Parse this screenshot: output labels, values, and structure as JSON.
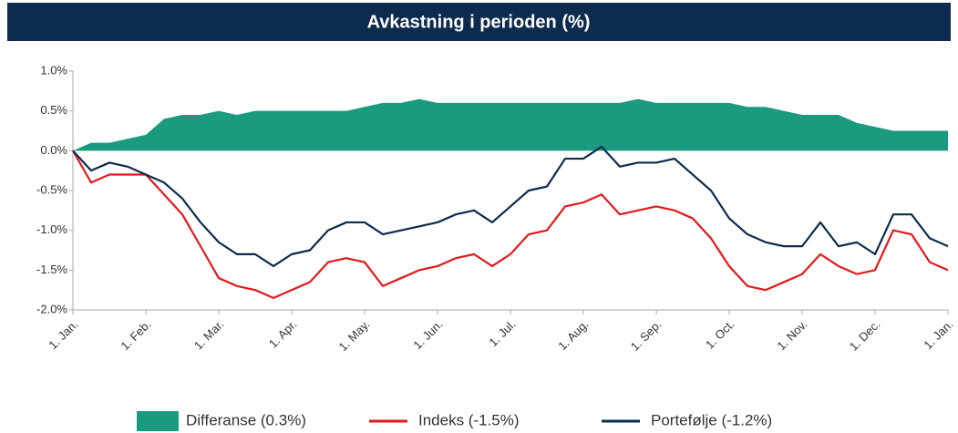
{
  "chart_data": {
    "type": "line",
    "title": "Avkastning i perioden (%)",
    "categories": [
      "1. Jan.",
      null,
      null,
      null,
      "1. Feb.",
      null,
      null,
      null,
      "1. Mar.",
      null,
      null,
      null,
      "1. Apr.",
      null,
      null,
      null,
      "1. May.",
      null,
      null,
      null,
      "1. Jun.",
      null,
      null,
      null,
      "1. Jul.",
      null,
      null,
      null,
      "1. Aug.",
      null,
      null,
      null,
      "1. Sep.",
      null,
      null,
      null,
      "1. Oct.",
      null,
      null,
      null,
      "1. Nov.",
      null,
      null,
      null,
      "1. Dec.",
      null,
      null,
      null,
      "1. Jan."
    ],
    "series": [
      {
        "name": "Differanse (0.3%)",
        "type": "area",
        "color": "#1a9a7f",
        "values": [
          0,
          0.1,
          0.1,
          0.15,
          0.2,
          0.4,
          0.45,
          0.45,
          0.5,
          0.45,
          0.5,
          0.5,
          0.5,
          0.5,
          0.5,
          0.5,
          0.55,
          0.6,
          0.6,
          0.65,
          0.6,
          0.6,
          0.6,
          0.6,
          0.6,
          0.6,
          0.6,
          0.6,
          0.6,
          0.6,
          0.6,
          0.65,
          0.6,
          0.6,
          0.6,
          0.6,
          0.6,
          0.55,
          0.55,
          0.5,
          0.45,
          0.45,
          0.45,
          0.35,
          0.3,
          0.25,
          0.25,
          0.25,
          0.25
        ]
      },
      {
        "name": "Indeks (-1.5%)",
        "type": "line",
        "color": "#e3191c",
        "values": [
          0,
          -0.4,
          -0.3,
          -0.3,
          -0.3,
          -0.55,
          -0.8,
          -1.2,
          -1.6,
          -1.7,
          -1.75,
          -1.85,
          -1.75,
          -1.65,
          -1.4,
          -1.35,
          -1.4,
          -1.7,
          -1.6,
          -1.5,
          -1.45,
          -1.35,
          -1.3,
          -1.45,
          -1.3,
          -1.05,
          -1.0,
          -0.7,
          -0.65,
          -0.55,
          -0.8,
          -0.75,
          -0.7,
          -0.75,
          -0.85,
          -1.1,
          -1.45,
          -1.7,
          -1.75,
          -1.65,
          -1.55,
          -1.3,
          -1.45,
          -1.55,
          -1.5,
          -1.0,
          -1.05,
          -1.4,
          -1.5
        ]
      },
      {
        "name": "Portefølje (-1.2%)",
        "type": "line",
        "color": "#0d2b4e",
        "values": [
          0,
          -0.25,
          -0.15,
          -0.2,
          -0.3,
          -0.4,
          -0.6,
          -0.9,
          -1.15,
          -1.3,
          -1.3,
          -1.45,
          -1.3,
          -1.25,
          -1.0,
          -0.9,
          -0.9,
          -1.05,
          -1.0,
          -0.95,
          -0.9,
          -0.8,
          -0.75,
          -0.9,
          -0.7,
          -0.5,
          -0.45,
          -0.1,
          -0.1,
          0.05,
          -0.2,
          -0.15,
          -0.15,
          -0.1,
          -0.3,
          -0.5,
          -0.85,
          -1.05,
          -1.15,
          -1.2,
          -1.2,
          -0.9,
          -1.2,
          -1.15,
          -1.3,
          -0.8,
          -0.8,
          -1.1,
          -1.2
        ]
      }
    ],
    "ylim": [
      -2.0,
      1.0
    ],
    "yticks": [
      {
        "value": -2.0,
        "label": "-2.0%"
      },
      {
        "value": -1.5,
        "label": "-1.5%"
      },
      {
        "value": -1.0,
        "label": "-1.0%"
      },
      {
        "value": -0.5,
        "label": "-0.5%"
      },
      {
        "value": 0.0,
        "label": "0.0%"
      },
      {
        "value": 0.5,
        "label": "0.5%"
      },
      {
        "value": 1.0,
        "label": "1.0%"
      }
    ],
    "legend": "bottom"
  }
}
